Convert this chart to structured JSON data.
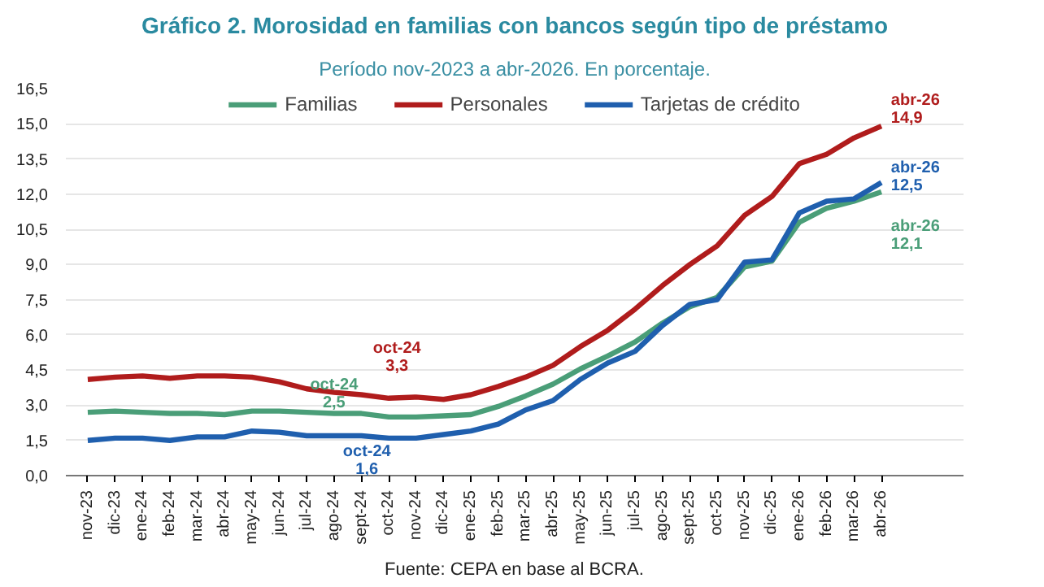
{
  "chart_data": {
    "type": "line",
    "title": "Gráfico 2. Morosidad en familias con bancos según tipo de préstamo",
    "subtitle": "Período nov-2023 a abr-2026. En porcentaje.",
    "categories": [
      "nov-23",
      "dic-23",
      "ene-24",
      "feb-24",
      "mar-24",
      "abr-24",
      "may-24",
      "jun-24",
      "jul-24",
      "ago-24",
      "sept-24",
      "oct-24",
      "nov-24",
      "dic-24",
      "ene-25",
      "feb-25",
      "mar-25",
      "abr-25",
      "may-25",
      "jun-25",
      "jul-25",
      "ago-25",
      "sept-25",
      "oct-25",
      "nov-25",
      "dic-25",
      "ene-26",
      "feb-26",
      "mar-26",
      "abr-26"
    ],
    "series": [
      {
        "name": "Familias",
        "color": "#4a9e78",
        "values": [
          2.7,
          2.75,
          2.7,
          2.65,
          2.65,
          2.6,
          2.75,
          2.75,
          2.7,
          2.65,
          2.65,
          2.5,
          2.5,
          2.55,
          2.6,
          2.95,
          3.4,
          3.9,
          4.55,
          5.1,
          5.7,
          6.5,
          7.2,
          7.6,
          8.9,
          9.15,
          10.8,
          11.4,
          11.7,
          12.1
        ]
      },
      {
        "name": "Personales",
        "color": "#b01c1c",
        "values": [
          4.1,
          4.2,
          4.25,
          4.15,
          4.25,
          4.25,
          4.2,
          4.0,
          3.7,
          3.55,
          3.45,
          3.3,
          3.35,
          3.25,
          3.45,
          3.8,
          4.2,
          4.7,
          5.5,
          6.2,
          7.1,
          8.1,
          9.0,
          9.8,
          11.1,
          11.9,
          13.3,
          13.7,
          14.4,
          14.9
        ]
      },
      {
        "name": "Tarjetas de crédito",
        "color": "#1f5fae",
        "values": [
          1.5,
          1.6,
          1.6,
          1.5,
          1.65,
          1.65,
          1.9,
          1.85,
          1.7,
          1.7,
          1.7,
          1.6,
          1.6,
          1.75,
          1.9,
          2.2,
          2.8,
          3.2,
          4.1,
          4.8,
          5.3,
          6.4,
          7.3,
          7.5,
          9.1,
          9.2,
          11.2,
          11.7,
          11.8,
          12.5
        ]
      }
    ],
    "ylim": [
      0,
      16.5
    ],
    "yticks": [
      {
        "value": 0,
        "label": "0,0"
      },
      {
        "value": 1.5,
        "label": "1,5"
      },
      {
        "value": 3,
        "label": "3,0"
      },
      {
        "value": 4.5,
        "label": "4,5"
      },
      {
        "value": 6,
        "label": "6,0"
      },
      {
        "value": 7.5,
        "label": "7,5"
      },
      {
        "value": 9,
        "label": "9,0"
      },
      {
        "value": 10.5,
        "label": "10,5"
      },
      {
        "value": 12,
        "label": "12,0"
      },
      {
        "value": 13.5,
        "label": "13,5"
      },
      {
        "value": 15,
        "label": "15,0"
      },
      {
        "value": 16.5,
        "label": "16,5"
      }
    ],
    "grid": "y",
    "legend": "top",
    "annotations": [
      {
        "text": "oct-24\n3,3",
        "x": "oct-24",
        "y": 3.3
      },
      {
        "text": "oct-24\n2,5",
        "x": "oct-24",
        "y": 2.5
      },
      {
        "text": "oct-24\n1,6",
        "x": "oct-24",
        "y": 1.6
      },
      {
        "text": "abr-26\n14,9",
        "x": "abr-26",
        "y": 14.9
      },
      {
        "text": "abr-26\n12,5",
        "x": "abr-26",
        "y": 12.5
      },
      {
        "text": "abr-26\n12,1",
        "x": "abr-26",
        "y": 12.1
      },
      "Fuente: CEPA en base al BCRA."
    ]
  }
}
